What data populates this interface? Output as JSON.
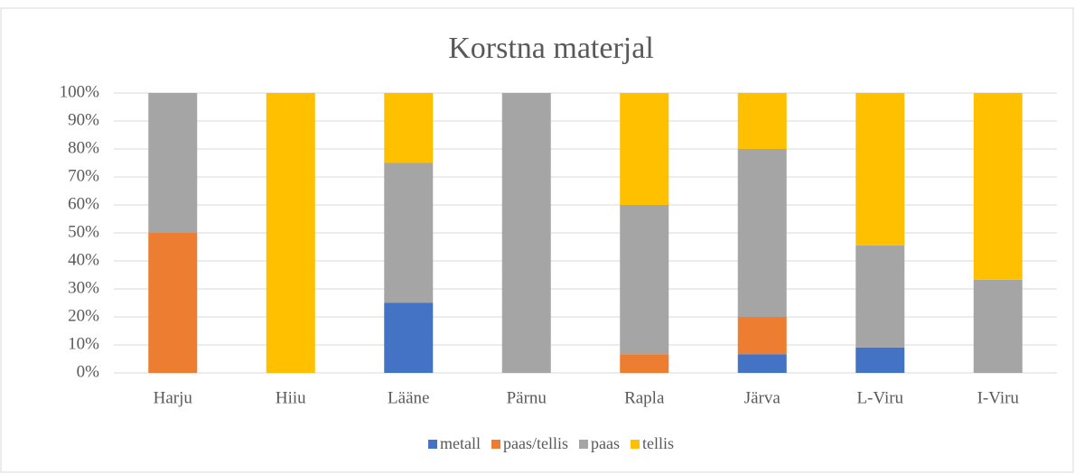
{
  "chart_data": {
    "type": "stacked_bar",
    "title": "Korstna materjal",
    "categories": [
      "Harju",
      "Hiiu",
      "Lääne",
      "Pärnu",
      "Rapla",
      "Järva",
      "L-Viru",
      "I-Viru"
    ],
    "series": [
      {
        "name": "metall",
        "color": "#4472c4",
        "values": [
          0,
          0,
          25,
          0,
          0,
          6.7,
          9.1,
          0
        ]
      },
      {
        "name": "paas/tellis",
        "color": "#ed7d31",
        "values": [
          50,
          0,
          0,
          0,
          6.7,
          13.3,
          0,
          0
        ]
      },
      {
        "name": "paas",
        "color": "#a5a5a5",
        "values": [
          50,
          0,
          50,
          100,
          53.3,
          60,
          36.4,
          33.3
        ]
      },
      {
        "name": "tellis",
        "color": "#ffc000",
        "values": [
          0,
          100,
          25,
          0,
          40,
          20,
          54.5,
          66.7
        ]
      }
    ],
    "ylim": [
      0,
      100
    ],
    "yticks": [
      {
        "value": 0,
        "label": "0%"
      },
      {
        "value": 10,
        "label": "10%"
      },
      {
        "value": 20,
        "label": "20%"
      },
      {
        "value": 30,
        "label": "30%"
      },
      {
        "value": 40,
        "label": "40%"
      },
      {
        "value": 50,
        "label": "50%"
      },
      {
        "value": 60,
        "label": "60%"
      },
      {
        "value": 70,
        "label": "70%"
      },
      {
        "value": 80,
        "label": "80%"
      },
      {
        "value": 90,
        "label": "90%"
      },
      {
        "value": 100,
        "label": "100%"
      }
    ],
    "grid": true,
    "legend": "bottom"
  }
}
